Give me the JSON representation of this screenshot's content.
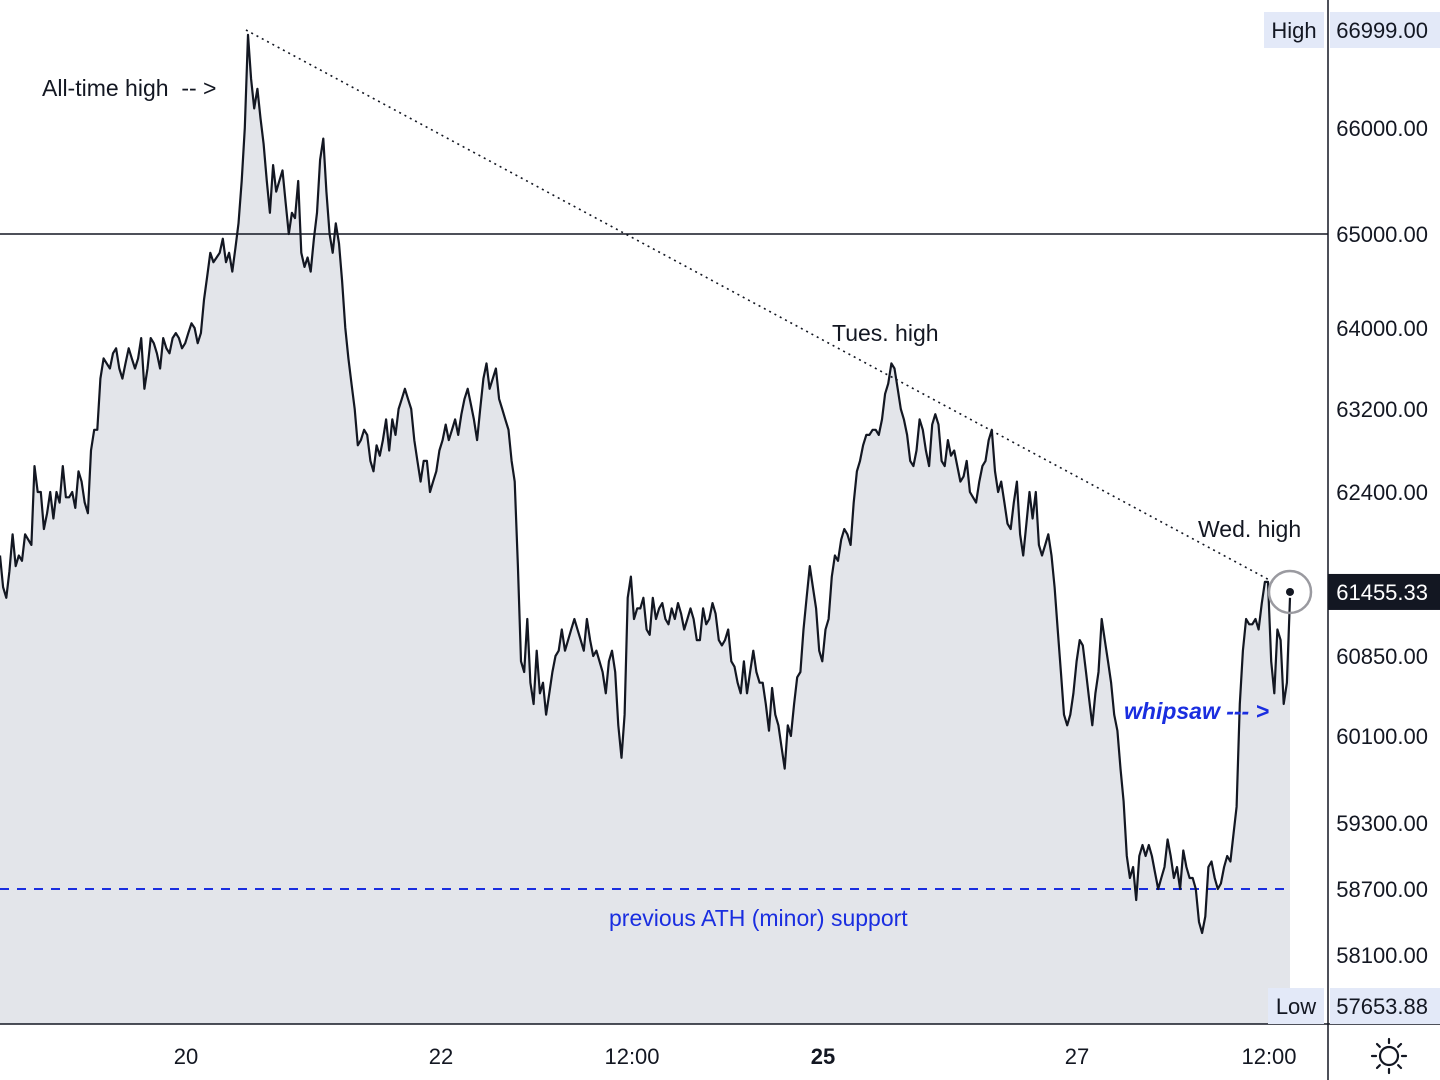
{
  "chart_data": {
    "type": "area",
    "title": "",
    "xlabel": "",
    "ylabel": "",
    "ylim": [
      57400,
      67400
    ],
    "x_ticks": [
      "20",
      "22",
      "12:00",
      "25",
      "27",
      "12:00"
    ],
    "y_ticks": [
      66000,
      65000,
      64000,
      63200,
      62400,
      60850,
      60100,
      59300,
      58700,
      58100
    ],
    "y_tick_labels": [
      "66000.00",
      "65000.00",
      "64000.00",
      "63200.00",
      "62400.00",
      "60850.00",
      "60100.00",
      "59300.00",
      "58700.00",
      "58100.00"
    ],
    "high": {
      "label": "High",
      "value": "66999.00"
    },
    "low": {
      "label": "Low",
      "value": "57653.88"
    },
    "last_price": "61455.33",
    "reference_lines": [
      {
        "value": 65000,
        "style": "solid",
        "color": "#131722"
      },
      {
        "value": 58700,
        "style": "dashed",
        "color": "#1a2ee0"
      }
    ],
    "trendline": {
      "from": [
        "20",
        66999
      ],
      "to": [
        "12:00",
        61550
      ]
    },
    "annotations": {
      "ath": "All-time high  -- >",
      "tues": "Tues. high",
      "wed": "Wed. high",
      "whipsaw": "whipsaw --- >",
      "support": "previous ATH (minor) support"
    },
    "grid": false,
    "line_color": "#131722",
    "fill_color": "#e3e5ea",
    "series": [
      {
        "values": [
          61800,
          61500,
          61400,
          61650,
          62000,
          61700,
          61800,
          61750,
          62000,
          61950,
          61900,
          62650,
          62400,
          62400,
          62050,
          62200,
          62400,
          62150,
          62400,
          62300,
          62650,
          62350,
          62350,
          62400,
          62250,
          62600,
          62500,
          62300,
          62200,
          62800,
          63000,
          63000,
          63500,
          63700,
          63650,
          63600,
          63750,
          63800,
          63600,
          63500,
          63650,
          63800,
          63700,
          63600,
          63700,
          63900,
          63400,
          63600,
          63900,
          63850,
          63750,
          63600,
          63900,
          63800,
          63750,
          63900,
          63950,
          63900,
          63800,
          63850,
          63950,
          64050,
          64000,
          63850,
          63950,
          64300,
          64550,
          64800,
          64700,
          64750,
          64800,
          64950,
          64700,
          64800,
          64600,
          64850,
          65100,
          65500,
          66000,
          66950,
          66500,
          66200,
          66400,
          66100,
          65850,
          65500,
          65200,
          65650,
          65400,
          65500,
          65600,
          65300,
          65000,
          65200,
          65150,
          65500,
          64800,
          64650,
          64750,
          64600,
          64950,
          65200,
          65700,
          65900,
          65400,
          65000,
          64800,
          65100,
          64900,
          64500,
          64000,
          63700,
          63450,
          63200,
          62850,
          62900,
          63000,
          62950,
          62700,
          62600,
          62850,
          62750,
          62900,
          63100,
          62800,
          63100,
          62950,
          63200,
          63300,
          63400,
          63300,
          63200,
          62900,
          62700,
          62500,
          62700,
          62700,
          62400,
          62500,
          62600,
          62800,
          62900,
          63050,
          62900,
          63000,
          63100,
          62950,
          63150,
          63300,
          63400,
          63250,
          63100,
          62900,
          63200,
          63500,
          63650,
          63400,
          63500,
          63600,
          63300,
          63200,
          63100,
          63000,
          62700,
          62500,
          61700,
          60800,
          60700,
          61200,
          60600,
          60400,
          60900,
          60500,
          60600,
          60300,
          60500,
          60700,
          60850,
          60900,
          61100,
          60900,
          61000,
          61100,
          61200,
          61100,
          61000,
          60900,
          61200,
          61000,
          60850,
          60900,
          60800,
          60700,
          60500,
          60800,
          60900,
          60700,
          60200,
          59900,
          60300,
          61400,
          61600,
          61200,
          61300,
          61300,
          61400,
          61100,
          61050,
          61400,
          61200,
          61300,
          61350,
          61200,
          61150,
          61300,
          61200,
          61350,
          61250,
          61100,
          61200,
          61300,
          61200,
          61000,
          61000,
          61300,
          61150,
          61200,
          61350,
          61250,
          61000,
          60950,
          61000,
          61100,
          60800,
          60750,
          60600,
          60500,
          60800,
          60500,
          60700,
          60900,
          60700,
          60600,
          60600,
          60400,
          60150,
          60550,
          60300,
          60200,
          60000,
          59800,
          60200,
          60100,
          60400,
          60650,
          60700,
          61100,
          61400,
          61700,
          61500,
          61300,
          60900,
          60800,
          61100,
          61200,
          61600,
          61800,
          61750,
          61950,
          62050,
          62000,
          61900,
          62300,
          62600,
          62700,
          62850,
          62950,
          62950,
          63000,
          63000,
          62950,
          63100,
          63350,
          63450,
          63650,
          63600,
          63400,
          63200,
          63100,
          62950,
          62700,
          62650,
          62800,
          63100,
          63000,
          62800,
          62650,
          63050,
          63150,
          63050,
          62700,
          62650,
          62900,
          62750,
          62800,
          62650,
          62500,
          62550,
          62700,
          62400,
          62350,
          62300,
          62500,
          62650,
          62700,
          62900,
          63000,
          62600,
          62400,
          62500,
          62300,
          62100,
          62050,
          62300,
          62500,
          62000,
          61800,
          62100,
          62400,
          62150,
          62400,
          61900,
          61800,
          61900,
          62000,
          61800,
          61500,
          61100,
          60700,
          60300,
          60200,
          60300,
          60500,
          60800,
          61000,
          60950,
          60700,
          60450,
          60200,
          60500,
          60700,
          61200,
          61000,
          60800,
          60600,
          60300,
          60150,
          59800,
          59500,
          59000,
          58800,
          58900,
          58600,
          59000,
          59100,
          59000,
          59100,
          59000,
          58850,
          58700,
          58800,
          58900,
          59150,
          59000,
          58800,
          58900,
          58700,
          59050,
          58900,
          58800,
          58800,
          58700,
          58400,
          58300,
          58450,
          58900,
          58950,
          58800,
          58700,
          58750,
          58900,
          59000,
          58950,
          59200,
          59450,
          60400,
          60900,
          61200,
          61150,
          61150,
          61200,
          61100,
          61350,
          61550,
          61550,
          60800,
          60500,
          61100,
          61000,
          60400,
          60600,
          61400
        ]
      }
    ]
  },
  "settings_icon": "settings-icon"
}
